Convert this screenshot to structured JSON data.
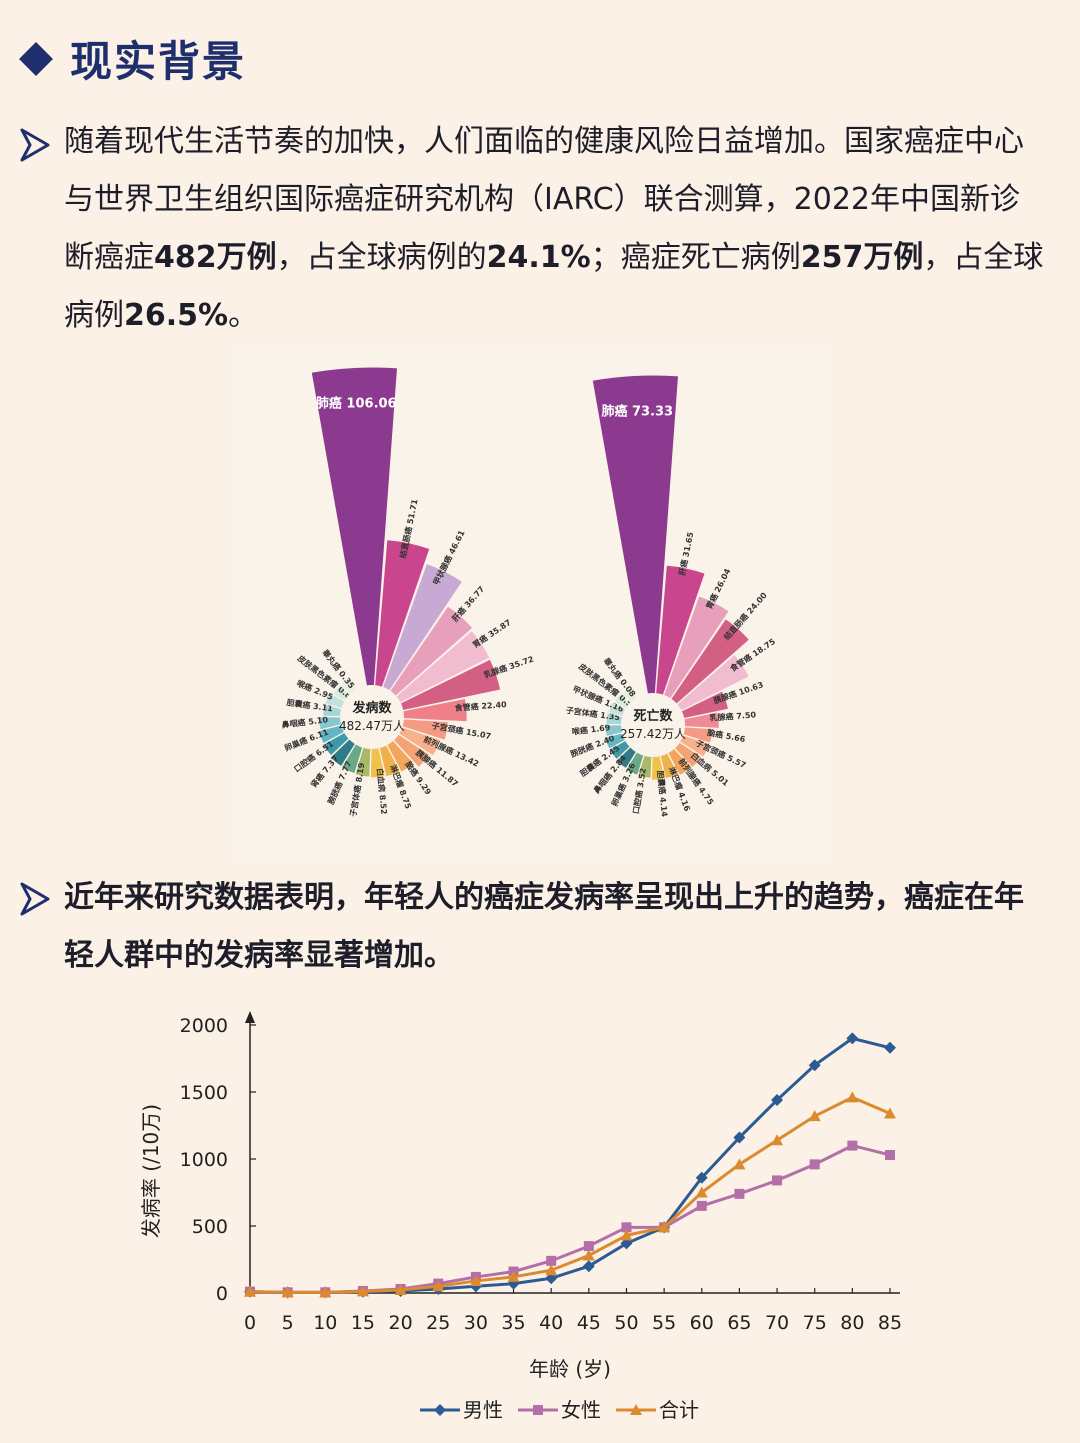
{
  "heading": {
    "title": "现实背景"
  },
  "para1": {
    "t1": "随着现代生活节奏的加快，人们面临的健康风险日益增加。国家癌症中心与世界卫生组织国际癌症研究机构（IARC）联合测算，2022年中国新诊断癌症",
    "b1": "482万例",
    "t2": "，占全球病例的",
    "b2": "24.1%",
    "t3": "；癌症死亡病例",
    "b3": "257万例",
    "t4": "，占全球病例",
    "b4": "26.5%",
    "t5": "。"
  },
  "para2": {
    "text": "近年来研究数据表明，年轻人的癌症发病率呈现出上升的趋势，癌症在年轻人群中的发病率显著增加。"
  },
  "chart_data": [
    {
      "type": "rose",
      "center_label": "发病数",
      "center_value": "482.47万人",
      "categories": [
        "肺癌",
        "结直肠癌",
        "甲状腺癌",
        "肝癌",
        "胃癌",
        "乳腺癌",
        "食管癌",
        "子宫颈癌",
        "前列腺癌",
        "胰腺癌",
        "脑癌",
        "淋巴瘤",
        "白血病",
        "子宫体癌",
        "膀胱癌",
        "肾癌",
        "口腔癌",
        "卵巢癌",
        "鼻咽癌",
        "胆囊癌",
        "喉癌",
        "皮肤黑色素瘤",
        "睾丸癌"
      ],
      "values": [
        106.06,
        51.71,
        46.61,
        36.77,
        35.87,
        35.72,
        22.4,
        15.07,
        13.42,
        11.87,
        9.29,
        8.75,
        8.52,
        8.19,
        7.77,
        7.37,
        6.51,
        6.11,
        5.1,
        3.11,
        2.95,
        0.88,
        0.35
      ],
      "colors": [
        "#8c3a8f",
        "#c9468f",
        "#c7a9d3",
        "#e79fbb",
        "#f1bccf",
        "#d45f85",
        "#ef7f88",
        "#f59b85",
        "#f7b28d",
        "#f4a474",
        "#f3a65a",
        "#efb14a",
        "#f0c24a",
        "#a9b96a",
        "#6aa88a",
        "#2f7c86",
        "#3d9aa8",
        "#63b7c4",
        "#86c8cf",
        "#a6d6d8",
        "#c3e2dd",
        "#d7ecdc",
        "#e5f0e0"
      ]
    },
    {
      "type": "rose",
      "center_label": "死亡数",
      "center_value": "257.42万人",
      "categories": [
        "肺癌",
        "肝癌",
        "胃癌",
        "结直肠癌",
        "食管癌",
        "胰腺癌",
        "乳腺癌",
        "脑癌",
        "子宫颈癌",
        "白血病",
        "前列腺癌",
        "淋巴瘤",
        "胆囊癌",
        "口腔癌",
        "卵巢癌",
        "鼻咽癌",
        "胆囊癌",
        "膀胱癌",
        "喉癌",
        "子宫体癌",
        "甲状腺癌",
        "皮肤黑色素瘤",
        "睾丸癌"
      ],
      "values": [
        73.33,
        31.65,
        26.04,
        24.0,
        18.75,
        10.63,
        7.5,
        5.66,
        5.57,
        5.01,
        4.75,
        4.16,
        4.14,
        3.52,
        3.26,
        2.84,
        2.45,
        2.4,
        1.69,
        1.35,
        1.16,
        0.54,
        0.08
      ],
      "colors": [
        "#8c3a8f",
        "#c9468f",
        "#e79fbb",
        "#d45f85",
        "#f1bccf",
        "#d45f85",
        "#ef8a96",
        "#f59b85",
        "#f7b28d",
        "#f4a474",
        "#f3a65a",
        "#efb14a",
        "#f0c24a",
        "#a9b96a",
        "#6aa88a",
        "#2f7c86",
        "#3d9aa8",
        "#63b7c4",
        "#86c8cf",
        "#a6d6d8",
        "#c3e2dd",
        "#d7ecdc",
        "#e5f0e0"
      ]
    },
    {
      "type": "line",
      "x": [
        0,
        5,
        10,
        15,
        20,
        25,
        30,
        35,
        40,
        45,
        50,
        55,
        60,
        65,
        70,
        75,
        80,
        85
      ],
      "series": [
        {
          "name": "男性",
          "color": "#2c5a93",
          "marker": "diamond",
          "values": [
            10,
            5,
            5,
            10,
            15,
            30,
            50,
            70,
            110,
            200,
            370,
            490,
            860,
            1160,
            1440,
            1700,
            1900,
            1830
          ]
        },
        {
          "name": "女性",
          "color": "#b36fa7",
          "marker": "square",
          "values": [
            10,
            5,
            5,
            15,
            30,
            70,
            120,
            160,
            240,
            350,
            490,
            490,
            650,
            740,
            840,
            960,
            1100,
            1030
          ]
        },
        {
          "name": "合计",
          "color": "#dc8a2e",
          "marker": "triangle",
          "values": [
            10,
            5,
            5,
            12,
            22,
            50,
            90,
            120,
            170,
            280,
            430,
            490,
            750,
            960,
            1140,
            1320,
            1460,
            1340
          ]
        }
      ],
      "xlabel": "年龄 (岁)",
      "ylabel": "发病率 (/10万)",
      "yticks": [
        0,
        500,
        1000,
        1500,
        2000
      ],
      "ylim": [
        0,
        2000
      ],
      "xlim": [
        0,
        85
      ]
    }
  ]
}
